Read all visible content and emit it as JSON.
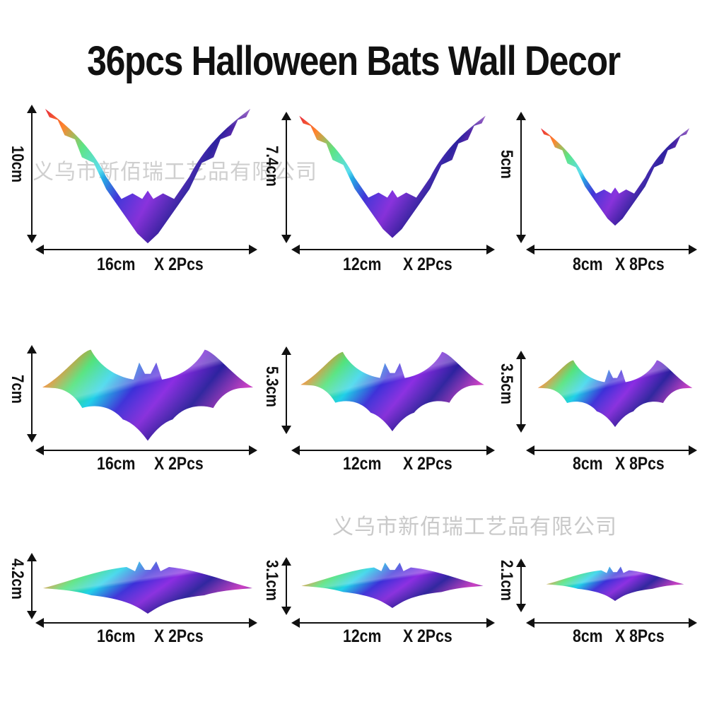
{
  "title": "36pcs Halloween Bats Wall Decor",
  "watermark": "义乌市新佰瑞工艺品有限公司",
  "colors": {
    "arrow": "#111111",
    "holo": [
      "#e8283a",
      "#ff7a1a",
      "#3adf6a",
      "#1fd0e8",
      "#3b2fd8",
      "#8a2be2",
      "#2a1f9e",
      "#d43cc8"
    ]
  },
  "rows": [
    {
      "shape": "v-wing",
      "items": [
        {
          "height": "10cm",
          "width": "16cm",
          "qty": "X 2Pcs"
        },
        {
          "height": "7.4cm",
          "width": "12cm",
          "qty": "X 2Pcs"
        },
        {
          "height": "5cm",
          "width": "8cm",
          "qty": "X 8Pcs"
        }
      ]
    },
    {
      "shape": "classic",
      "items": [
        {
          "height": "7cm",
          "width": "16cm",
          "qty": "X 2Pcs"
        },
        {
          "height": "5.3cm",
          "width": "12cm",
          "qty": "X 2Pcs"
        },
        {
          "height": "3.5cm",
          "width": "8cm",
          "qty": "X 8Pcs"
        }
      ]
    },
    {
      "shape": "flat",
      "items": [
        {
          "height": "4.2cm",
          "width": "16cm",
          "qty": "X 2Pcs"
        },
        {
          "height": "3.1cm",
          "width": "12cm",
          "qty": "X 2Pcs"
        },
        {
          "height": "2.1cm",
          "width": "8cm",
          "qty": "X 8Pcs"
        }
      ]
    }
  ]
}
